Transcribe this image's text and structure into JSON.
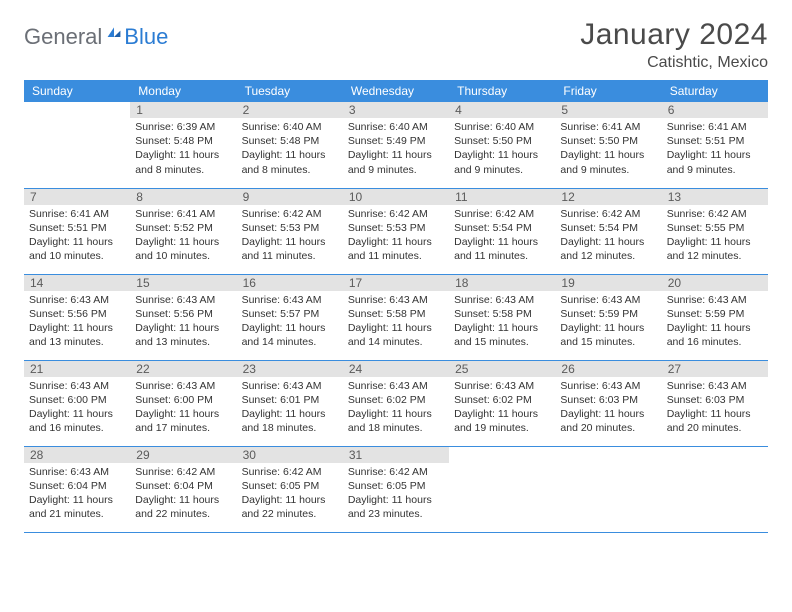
{
  "colors": {
    "header_bg": "#3a8dde",
    "header_text": "#ffffff",
    "daynum_bg": "#e3e3e3",
    "daynum_text": "#5b5b5b",
    "border": "#3a8dde",
    "body_text": "#333333",
    "logo_gray": "#6b6f76",
    "logo_blue": "#2b7cd3"
  },
  "logo": {
    "part1": "General",
    "part2": "Blue"
  },
  "title": {
    "month": "January 2024",
    "location": "Catishtic, Mexico"
  },
  "weekdays": [
    "Sunday",
    "Monday",
    "Tuesday",
    "Wednesday",
    "Thursday",
    "Friday",
    "Saturday"
  ],
  "start_offset": 1,
  "days": [
    {
      "n": 1,
      "sunrise": "6:39 AM",
      "sunset": "5:48 PM",
      "daylight": "11 hours and 8 minutes."
    },
    {
      "n": 2,
      "sunrise": "6:40 AM",
      "sunset": "5:48 PM",
      "daylight": "11 hours and 8 minutes."
    },
    {
      "n": 3,
      "sunrise": "6:40 AM",
      "sunset": "5:49 PM",
      "daylight": "11 hours and 9 minutes."
    },
    {
      "n": 4,
      "sunrise": "6:40 AM",
      "sunset": "5:50 PM",
      "daylight": "11 hours and 9 minutes."
    },
    {
      "n": 5,
      "sunrise": "6:41 AM",
      "sunset": "5:50 PM",
      "daylight": "11 hours and 9 minutes."
    },
    {
      "n": 6,
      "sunrise": "6:41 AM",
      "sunset": "5:51 PM",
      "daylight": "11 hours and 9 minutes."
    },
    {
      "n": 7,
      "sunrise": "6:41 AM",
      "sunset": "5:51 PM",
      "daylight": "11 hours and 10 minutes."
    },
    {
      "n": 8,
      "sunrise": "6:41 AM",
      "sunset": "5:52 PM",
      "daylight": "11 hours and 10 minutes."
    },
    {
      "n": 9,
      "sunrise": "6:42 AM",
      "sunset": "5:53 PM",
      "daylight": "11 hours and 11 minutes."
    },
    {
      "n": 10,
      "sunrise": "6:42 AM",
      "sunset": "5:53 PM",
      "daylight": "11 hours and 11 minutes."
    },
    {
      "n": 11,
      "sunrise": "6:42 AM",
      "sunset": "5:54 PM",
      "daylight": "11 hours and 11 minutes."
    },
    {
      "n": 12,
      "sunrise": "6:42 AM",
      "sunset": "5:54 PM",
      "daylight": "11 hours and 12 minutes."
    },
    {
      "n": 13,
      "sunrise": "6:42 AM",
      "sunset": "5:55 PM",
      "daylight": "11 hours and 12 minutes."
    },
    {
      "n": 14,
      "sunrise": "6:43 AM",
      "sunset": "5:56 PM",
      "daylight": "11 hours and 13 minutes."
    },
    {
      "n": 15,
      "sunrise": "6:43 AM",
      "sunset": "5:56 PM",
      "daylight": "11 hours and 13 minutes."
    },
    {
      "n": 16,
      "sunrise": "6:43 AM",
      "sunset": "5:57 PM",
      "daylight": "11 hours and 14 minutes."
    },
    {
      "n": 17,
      "sunrise": "6:43 AM",
      "sunset": "5:58 PM",
      "daylight": "11 hours and 14 minutes."
    },
    {
      "n": 18,
      "sunrise": "6:43 AM",
      "sunset": "5:58 PM",
      "daylight": "11 hours and 15 minutes."
    },
    {
      "n": 19,
      "sunrise": "6:43 AM",
      "sunset": "5:59 PM",
      "daylight": "11 hours and 15 minutes."
    },
    {
      "n": 20,
      "sunrise": "6:43 AM",
      "sunset": "5:59 PM",
      "daylight": "11 hours and 16 minutes."
    },
    {
      "n": 21,
      "sunrise": "6:43 AM",
      "sunset": "6:00 PM",
      "daylight": "11 hours and 16 minutes."
    },
    {
      "n": 22,
      "sunrise": "6:43 AM",
      "sunset": "6:00 PM",
      "daylight": "11 hours and 17 minutes."
    },
    {
      "n": 23,
      "sunrise": "6:43 AM",
      "sunset": "6:01 PM",
      "daylight": "11 hours and 18 minutes."
    },
    {
      "n": 24,
      "sunrise": "6:43 AM",
      "sunset": "6:02 PM",
      "daylight": "11 hours and 18 minutes."
    },
    {
      "n": 25,
      "sunrise": "6:43 AM",
      "sunset": "6:02 PM",
      "daylight": "11 hours and 19 minutes."
    },
    {
      "n": 26,
      "sunrise": "6:43 AM",
      "sunset": "6:03 PM",
      "daylight": "11 hours and 20 minutes."
    },
    {
      "n": 27,
      "sunrise": "6:43 AM",
      "sunset": "6:03 PM",
      "daylight": "11 hours and 20 minutes."
    },
    {
      "n": 28,
      "sunrise": "6:43 AM",
      "sunset": "6:04 PM",
      "daylight": "11 hours and 21 minutes."
    },
    {
      "n": 29,
      "sunrise": "6:42 AM",
      "sunset": "6:04 PM",
      "daylight": "11 hours and 22 minutes."
    },
    {
      "n": 30,
      "sunrise": "6:42 AM",
      "sunset": "6:05 PM",
      "daylight": "11 hours and 22 minutes."
    },
    {
      "n": 31,
      "sunrise": "6:42 AM",
      "sunset": "6:05 PM",
      "daylight": "11 hours and 23 minutes."
    }
  ]
}
